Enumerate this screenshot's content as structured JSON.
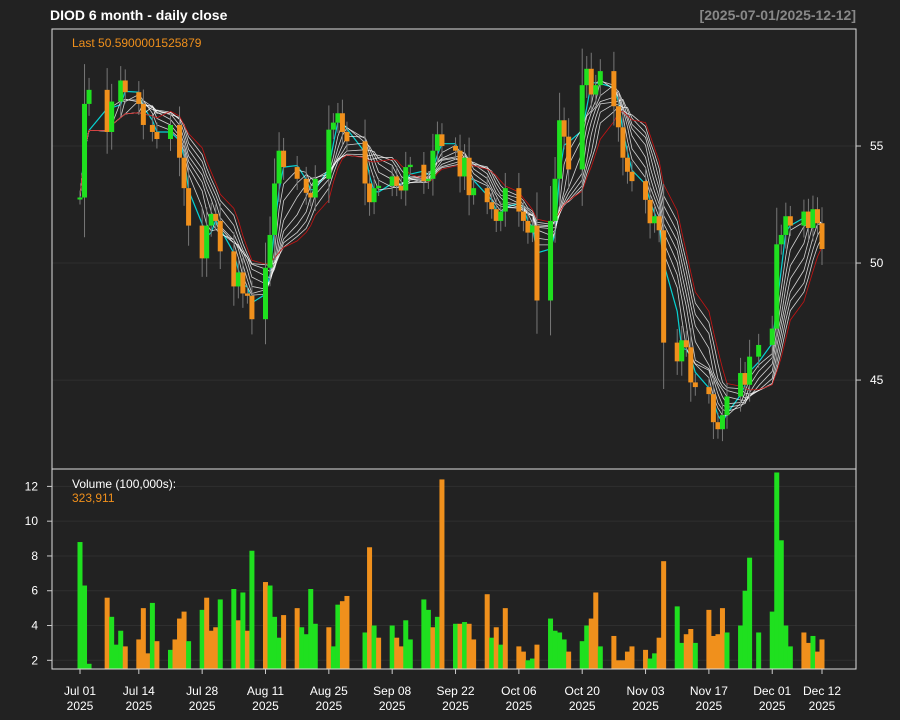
{
  "header": {
    "title": "DIOD  6 month - daily close",
    "date_range": "[2025-07-01/2025-12-12]"
  },
  "colors": {
    "background": "#222222",
    "up": "#1fe01f",
    "down": "#f0901c",
    "last_label": "#f0901c",
    "envelope": "#c81414",
    "ribbon": "#ffffff",
    "ribbon_accent": "#00ffff",
    "grid": "#2f2f2f",
    "frame": "#dddddd"
  },
  "chart_data": [
    {
      "type": "candlestick",
      "panel": "price",
      "last_label": "Last 50.5900001525879",
      "ylim": [
        41.2,
        60.0
      ],
      "y_ticks": [
        45,
        50,
        55
      ],
      "y_tick_labels": [
        "45",
        "50",
        "55"
      ],
      "grid": true,
      "x_ticks": [
        {
          "date": "2025-07-01",
          "line1": "Jul 01",
          "line2": "2025"
        },
        {
          "date": "2025-07-14",
          "line1": "Jul 14",
          "line2": "2025"
        },
        {
          "date": "2025-07-28",
          "line1": "Jul 28",
          "line2": "2025"
        },
        {
          "date": "2025-08-11",
          "line1": "Aug 11",
          "line2": "2025"
        },
        {
          "date": "2025-08-25",
          "line1": "Aug 25",
          "line2": "2025"
        },
        {
          "date": "2025-09-08",
          "line1": "Sep 08",
          "line2": "2025"
        },
        {
          "date": "2025-09-22",
          "line1": "Sep 22",
          "line2": "2025"
        },
        {
          "date": "2025-10-06",
          "line1": "Oct 06",
          "line2": "2025"
        },
        {
          "date": "2025-10-20",
          "line1": "Oct 20",
          "line2": "2025"
        },
        {
          "date": "2025-11-03",
          "line1": "Nov 03",
          "line2": "2025"
        },
        {
          "date": "2025-11-17",
          "line1": "Nov 17",
          "line2": "2025"
        },
        {
          "date": "2025-12-01",
          "line1": "Dec 01",
          "line2": "2025"
        },
        {
          "date": "2025-12-12",
          "line1": "Dec 12",
          "line2": "2025"
        }
      ],
      "close_points": [
        [
          "2025-07-01",
          52.8
        ],
        [
          "2025-07-02",
          56.8
        ],
        [
          "2025-07-03",
          57.4
        ],
        [
          "2025-07-07",
          55.6
        ],
        [
          "2025-07-08",
          56.9
        ],
        [
          "2025-07-10",
          57.8
        ],
        [
          "2025-07-11",
          57.3
        ],
        [
          "2025-07-14",
          56.8
        ],
        [
          "2025-07-15",
          55.9
        ],
        [
          "2025-07-17",
          55.6
        ],
        [
          "2025-07-18",
          55.3
        ],
        [
          "2025-07-21",
          55.9
        ],
        [
          "2025-07-23",
          54.5
        ],
        [
          "2025-07-24",
          53.2
        ],
        [
          "2025-07-25",
          51.6
        ],
        [
          "2025-07-28",
          50.2
        ],
        [
          "2025-07-29",
          51.6
        ],
        [
          "2025-07-30",
          52.1
        ],
        [
          "2025-07-31",
          51.8
        ],
        [
          "2025-08-01",
          50.5
        ],
        [
          "2025-08-04",
          49.0
        ],
        [
          "2025-08-05",
          49.6
        ],
        [
          "2025-08-06",
          48.7
        ],
        [
          "2025-08-07",
          48.6
        ],
        [
          "2025-08-08",
          47.6
        ],
        [
          "2025-08-11",
          49.8
        ],
        [
          "2025-08-12",
          51.2
        ],
        [
          "2025-08-13",
          53.4
        ],
        [
          "2025-08-14",
          54.8
        ],
        [
          "2025-08-15",
          54.1
        ],
        [
          "2025-08-18",
          53.6
        ],
        [
          "2025-08-20",
          53.0
        ],
        [
          "2025-08-21",
          52.8
        ],
        [
          "2025-08-22",
          53.6
        ],
        [
          "2025-08-25",
          55.7
        ],
        [
          "2025-08-26",
          56.0
        ],
        [
          "2025-08-27",
          56.4
        ],
        [
          "2025-08-28",
          55.6
        ],
        [
          "2025-08-29",
          55.2
        ],
        [
          "2025-09-02",
          53.4
        ],
        [
          "2025-09-03",
          52.6
        ],
        [
          "2025-09-04",
          53.2
        ],
        [
          "2025-09-05",
          53.3
        ],
        [
          "2025-09-08",
          53.7
        ],
        [
          "2025-09-09",
          53.3
        ],
        [
          "2025-09-10",
          53.1
        ],
        [
          "2025-09-11",
          54.1
        ],
        [
          "2025-09-12",
          54.2
        ],
        [
          "2025-09-15",
          53.5
        ],
        [
          "2025-09-16",
          53.6
        ],
        [
          "2025-09-17",
          54.8
        ],
        [
          "2025-09-18",
          55.5
        ],
        [
          "2025-09-19",
          55.0
        ],
        [
          "2025-09-22",
          54.8
        ],
        [
          "2025-09-23",
          53.7
        ],
        [
          "2025-09-24",
          54.5
        ],
        [
          "2025-09-25",
          52.9
        ],
        [
          "2025-09-26",
          53.2
        ],
        [
          "2025-09-29",
          52.6
        ],
        [
          "2025-09-30",
          52.3
        ],
        [
          "2025-10-01",
          51.8
        ],
        [
          "2025-10-02",
          52.2
        ],
        [
          "2025-10-03",
          53.2
        ],
        [
          "2025-10-06",
          52.2
        ],
        [
          "2025-10-07",
          51.8
        ],
        [
          "2025-10-08",
          51.3
        ],
        [
          "2025-10-09",
          51.6
        ],
        [
          "2025-10-10",
          48.4
        ],
        [
          "2025-10-13",
          51.8
        ],
        [
          "2025-10-14",
          53.6
        ],
        [
          "2025-10-15",
          56.1
        ],
        [
          "2025-10-16",
          55.4
        ],
        [
          "2025-10-17",
          54.0
        ],
        [
          "2025-10-20",
          57.6
        ],
        [
          "2025-10-21",
          58.3
        ],
        [
          "2025-10-22",
          57.2
        ],
        [
          "2025-10-23",
          57.6
        ],
        [
          "2025-10-24",
          58.2
        ],
        [
          "2025-10-27",
          56.7
        ],
        [
          "2025-10-28",
          55.8
        ],
        [
          "2025-10-29",
          54.5
        ],
        [
          "2025-10-30",
          53.9
        ],
        [
          "2025-10-31",
          53.5
        ],
        [
          "2025-11-03",
          52.7
        ],
        [
          "2025-11-04",
          51.7
        ],
        [
          "2025-11-05",
          52.0
        ],
        [
          "2025-11-06",
          51.4
        ],
        [
          "2025-11-07",
          46.6
        ],
        [
          "2025-11-10",
          45.8
        ],
        [
          "2025-11-11",
          46.7
        ],
        [
          "2025-11-12",
          46.4
        ],
        [
          "2025-11-13",
          44.9
        ],
        [
          "2025-11-14",
          44.7
        ],
        [
          "2025-11-17",
          44.4
        ],
        [
          "2025-11-18",
          43.2
        ],
        [
          "2025-11-19",
          42.9
        ],
        [
          "2025-11-20",
          43.5
        ],
        [
          "2025-11-21",
          44.3
        ],
        [
          "2025-11-24",
          45.3
        ],
        [
          "2025-11-25",
          44.8
        ],
        [
          "2025-11-26",
          46.0
        ],
        [
          "2025-11-28",
          46.5
        ],
        [
          "2025-12-01",
          47.2
        ],
        [
          "2025-12-02",
          50.8
        ],
        [
          "2025-12-03",
          51.2
        ],
        [
          "2025-12-04",
          52.0
        ],
        [
          "2025-12-05",
          51.6
        ],
        [
          "2025-12-08",
          52.2
        ],
        [
          "2025-12-09",
          51.5
        ],
        [
          "2025-12-10",
          52.3
        ],
        [
          "2025-12-11",
          51.7
        ],
        [
          "2025-12-12",
          50.6
        ]
      ]
    },
    {
      "type": "bar",
      "panel": "volume",
      "label": "Volume (100,000s):",
      "last_value": "323,911",
      "ylim": [
        1.5,
        13.0
      ],
      "y_ticks": [
        2,
        4,
        6,
        8,
        10,
        12
      ],
      "y_tick_labels": [
        "2",
        "4",
        "6",
        "8",
        "10",
        "12"
      ],
      "volume_points": [
        [
          "2025-07-01",
          8.8,
          "up"
        ],
        [
          "2025-07-02",
          6.3,
          "up"
        ],
        [
          "2025-07-03",
          1.8,
          "up"
        ],
        [
          "2025-07-07",
          5.6,
          "down"
        ],
        [
          "2025-07-08",
          4.5,
          "up"
        ],
        [
          "2025-07-09",
          2.9,
          "up"
        ],
        [
          "2025-07-10",
          3.7,
          "up"
        ],
        [
          "2025-07-11",
          2.8,
          "down"
        ],
        [
          "2025-07-14",
          3.2,
          "down"
        ],
        [
          "2025-07-15",
          5.0,
          "down"
        ],
        [
          "2025-07-16",
          2.4,
          "down"
        ],
        [
          "2025-07-17",
          5.3,
          "up"
        ],
        [
          "2025-07-18",
          3.1,
          "down"
        ],
        [
          "2025-07-21",
          2.6,
          "up"
        ],
        [
          "2025-07-22",
          3.2,
          "down"
        ],
        [
          "2025-07-23",
          4.4,
          "down"
        ],
        [
          "2025-07-24",
          4.8,
          "down"
        ],
        [
          "2025-07-25",
          3.1,
          "up"
        ],
        [
          "2025-07-28",
          4.9,
          "up"
        ],
        [
          "2025-07-29",
          5.6,
          "down"
        ],
        [
          "2025-07-30",
          3.7,
          "down"
        ],
        [
          "2025-07-31",
          3.9,
          "down"
        ],
        [
          "2025-08-01",
          5.5,
          "up"
        ],
        [
          "2025-08-04",
          6.1,
          "up"
        ],
        [
          "2025-08-05",
          4.3,
          "down"
        ],
        [
          "2025-08-06",
          5.9,
          "up"
        ],
        [
          "2025-08-07",
          3.7,
          "down"
        ],
        [
          "2025-08-08",
          8.3,
          "up"
        ],
        [
          "2025-08-11",
          6.5,
          "down"
        ],
        [
          "2025-08-12",
          6.3,
          "up"
        ],
        [
          "2025-08-13",
          4.5,
          "up"
        ],
        [
          "2025-08-14",
          3.3,
          "up"
        ],
        [
          "2025-08-15",
          4.6,
          "down"
        ],
        [
          "2025-08-18",
          5.0,
          "down"
        ],
        [
          "2025-08-19",
          3.9,
          "up"
        ],
        [
          "2025-08-20",
          3.5,
          "up"
        ],
        [
          "2025-08-21",
          6.1,
          "up"
        ],
        [
          "2025-08-22",
          4.1,
          "up"
        ],
        [
          "2025-08-25",
          3.9,
          "down"
        ],
        [
          "2025-08-26",
          2.8,
          "up"
        ],
        [
          "2025-08-27",
          5.2,
          "up"
        ],
        [
          "2025-08-28",
          5.4,
          "down"
        ],
        [
          "2025-08-29",
          5.7,
          "down"
        ],
        [
          "2025-09-02",
          3.6,
          "up"
        ],
        [
          "2025-09-03",
          8.5,
          "down"
        ],
        [
          "2025-09-04",
          4.0,
          "up"
        ],
        [
          "2025-09-05",
          3.3,
          "down"
        ],
        [
          "2025-09-08",
          4.0,
          "up"
        ],
        [
          "2025-09-09",
          3.3,
          "down"
        ],
        [
          "2025-09-10",
          2.8,
          "down"
        ],
        [
          "2025-09-11",
          4.3,
          "up"
        ],
        [
          "2025-09-12",
          3.2,
          "up"
        ],
        [
          "2025-09-15",
          5.5,
          "up"
        ],
        [
          "2025-09-16",
          4.9,
          "up"
        ],
        [
          "2025-09-17",
          3.9,
          "down"
        ],
        [
          "2025-09-18",
          4.5,
          "up"
        ],
        [
          "2025-09-19",
          12.4,
          "down"
        ],
        [
          "2025-09-22",
          4.1,
          "up"
        ],
        [
          "2025-09-23",
          4.1,
          "down"
        ],
        [
          "2025-09-24",
          4.2,
          "up"
        ],
        [
          "2025-09-25",
          4.1,
          "down"
        ],
        [
          "2025-09-26",
          3.2,
          "down"
        ],
        [
          "2025-09-29",
          5.8,
          "down"
        ],
        [
          "2025-09-30",
          3.3,
          "up"
        ],
        [
          "2025-10-01",
          3.9,
          "down"
        ],
        [
          "2025-10-02",
          2.9,
          "up"
        ],
        [
          "2025-10-03",
          5.0,
          "down"
        ],
        [
          "2025-10-06",
          2.8,
          "down"
        ],
        [
          "2025-10-07",
          2.5,
          "down"
        ],
        [
          "2025-10-08",
          2.0,
          "up"
        ],
        [
          "2025-10-09",
          2.1,
          "up"
        ],
        [
          "2025-10-10",
          2.9,
          "down"
        ],
        [
          "2025-10-13",
          4.4,
          "up"
        ],
        [
          "2025-10-14",
          3.7,
          "up"
        ],
        [
          "2025-10-15",
          3.6,
          "up"
        ],
        [
          "2025-10-16",
          3.2,
          "up"
        ],
        [
          "2025-10-17",
          2.5,
          "down"
        ],
        [
          "2025-10-20",
          3.1,
          "up"
        ],
        [
          "2025-10-21",
          4.0,
          "up"
        ],
        [
          "2025-10-22",
          4.4,
          "down"
        ],
        [
          "2025-10-23",
          5.9,
          "down"
        ],
        [
          "2025-10-24",
          2.8,
          "up"
        ],
        [
          "2025-10-27",
          3.4,
          "down"
        ],
        [
          "2025-10-28",
          2.0,
          "down"
        ],
        [
          "2025-10-29",
          2.0,
          "down"
        ],
        [
          "2025-10-30",
          2.5,
          "down"
        ],
        [
          "2025-10-31",
          2.8,
          "down"
        ],
        [
          "2025-11-03",
          2.6,
          "down"
        ],
        [
          "2025-11-04",
          2.1,
          "up"
        ],
        [
          "2025-11-05",
          2.4,
          "up"
        ],
        [
          "2025-11-06",
          3.3,
          "down"
        ],
        [
          "2025-11-07",
          7.7,
          "down"
        ],
        [
          "2025-11-10",
          5.1,
          "up"
        ],
        [
          "2025-11-11",
          3.0,
          "up"
        ],
        [
          "2025-11-12",
          3.5,
          "down"
        ],
        [
          "2025-11-13",
          3.8,
          "down"
        ],
        [
          "2025-11-14",
          3.0,
          "up"
        ],
        [
          "2025-11-17",
          4.9,
          "down"
        ],
        [
          "2025-11-18",
          3.4,
          "down"
        ],
        [
          "2025-11-19",
          3.5,
          "down"
        ],
        [
          "2025-11-20",
          5.0,
          "down"
        ],
        [
          "2025-11-21",
          3.6,
          "up"
        ],
        [
          "2025-11-24",
          4.0,
          "up"
        ],
        [
          "2025-11-25",
          6.0,
          "up"
        ],
        [
          "2025-11-26",
          7.9,
          "up"
        ],
        [
          "2025-11-28",
          3.6,
          "up"
        ],
        [
          "2025-12-01",
          4.8,
          "up"
        ],
        [
          "2025-12-02",
          12.8,
          "up"
        ],
        [
          "2025-12-03",
          8.9,
          "up"
        ],
        [
          "2025-12-04",
          4.0,
          "up"
        ],
        [
          "2025-12-05",
          2.8,
          "up"
        ],
        [
          "2025-12-08",
          3.6,
          "down"
        ],
        [
          "2025-12-09",
          3.0,
          "down"
        ],
        [
          "2025-12-10",
          3.4,
          "up"
        ],
        [
          "2025-12-11",
          2.5,
          "down"
        ],
        [
          "2025-12-12",
          3.2,
          "down"
        ]
      ]
    }
  ]
}
